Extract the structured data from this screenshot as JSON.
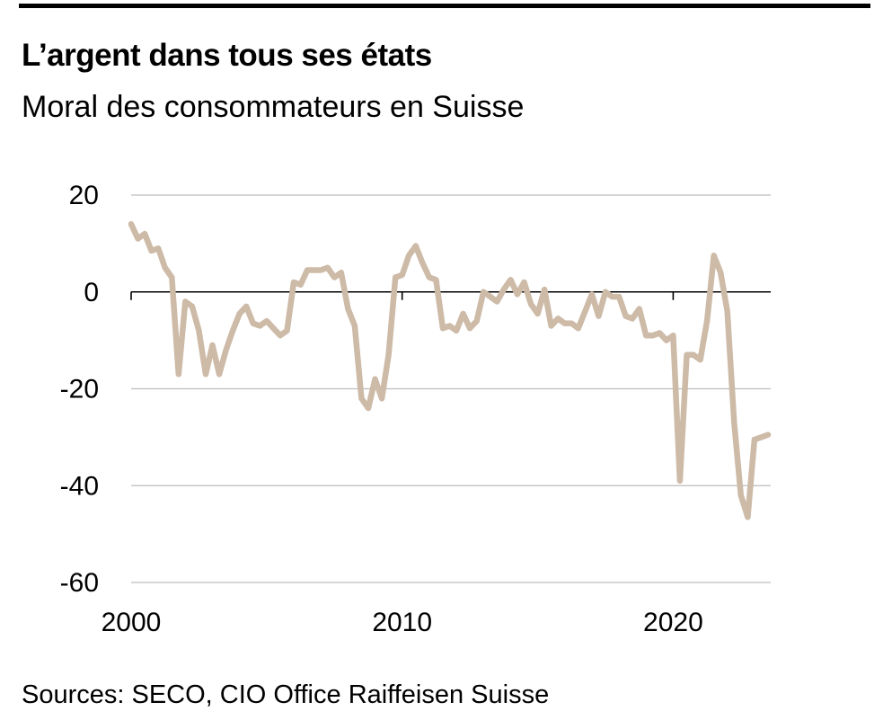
{
  "header": {
    "title": "L’argent dans tous ses états",
    "subtitle": "Moral des consommateurs en Suisse"
  },
  "footer": {
    "source": "Sources: SECO, CIO Office Raiffeisen Suisse"
  },
  "colors": {
    "line": "#cdbaa7",
    "grid": "#bdbdbd",
    "zero_line": "#000000",
    "top_rule": "#000000"
  },
  "chart_data": {
    "type": "line",
    "title": "L’argent dans tous ses états",
    "subtitle": "Moral des consommateurs en Suisse",
    "xlabel": "",
    "ylabel": "",
    "xlim": [
      2000,
      2023.5
    ],
    "ylim": [
      -60,
      20
    ],
    "x_ticks": [
      2000,
      2010,
      2020
    ],
    "y_ticks": [
      20,
      0,
      -20,
      -40,
      -60
    ],
    "grid": "horizontal",
    "series": [
      {
        "points": [
          [
            2000.0,
            14
          ],
          [
            2000.25,
            11
          ],
          [
            2000.5,
            12
          ],
          [
            2000.75,
            8.5
          ],
          [
            2001.0,
            9
          ],
          [
            2001.25,
            5
          ],
          [
            2001.5,
            3
          ],
          [
            2001.75,
            -17
          ],
          [
            2002.0,
            -2
          ],
          [
            2002.25,
            -3
          ],
          [
            2002.5,
            -8
          ],
          [
            2002.75,
            -17
          ],
          [
            2003.0,
            -11
          ],
          [
            2003.25,
            -17
          ],
          [
            2003.5,
            -12
          ],
          [
            2003.75,
            -8
          ],
          [
            2004.0,
            -4.5
          ],
          [
            2004.25,
            -3
          ],
          [
            2004.5,
            -6.5
          ],
          [
            2004.75,
            -7
          ],
          [
            2005.0,
            -6
          ],
          [
            2005.25,
            -7.5
          ],
          [
            2005.5,
            -9
          ],
          [
            2005.75,
            -8
          ],
          [
            2006.0,
            2
          ],
          [
            2006.25,
            1.5
          ],
          [
            2006.5,
            4.5
          ],
          [
            2006.75,
            4.5
          ],
          [
            2007.0,
            4.5
          ],
          [
            2007.25,
            5
          ],
          [
            2007.5,
            3
          ],
          [
            2007.75,
            4
          ],
          [
            2008.0,
            -3.5
          ],
          [
            2008.25,
            -7
          ],
          [
            2008.5,
            -22
          ],
          [
            2008.75,
            -24
          ],
          [
            2009.0,
            -18
          ],
          [
            2009.25,
            -22
          ],
          [
            2009.5,
            -13
          ],
          [
            2009.75,
            3
          ],
          [
            2010.0,
            3.5
          ],
          [
            2010.25,
            7.5
          ],
          [
            2010.5,
            9.5
          ],
          [
            2010.75,
            6
          ],
          [
            2011.0,
            3
          ],
          [
            2011.25,
            2.5
          ],
          [
            2011.5,
            -7.5
          ],
          [
            2011.75,
            -7
          ],
          [
            2012.0,
            -8
          ],
          [
            2012.25,
            -4.5
          ],
          [
            2012.5,
            -7.5
          ],
          [
            2012.75,
            -6
          ],
          [
            2013.0,
            0
          ],
          [
            2013.25,
            -1
          ],
          [
            2013.5,
            -2
          ],
          [
            2013.75,
            0.5
          ],
          [
            2014.0,
            2.5
          ],
          [
            2014.25,
            -0.5
          ],
          [
            2014.5,
            2
          ],
          [
            2014.75,
            -2.5
          ],
          [
            2015.0,
            -4.5
          ],
          [
            2015.25,
            0.5
          ],
          [
            2015.5,
            -7
          ],
          [
            2015.75,
            -5.5
          ],
          [
            2016.0,
            -6.5
          ],
          [
            2016.25,
            -6.5
          ],
          [
            2016.5,
            -7.5
          ],
          [
            2016.75,
            -4
          ],
          [
            2017.0,
            -0.5
          ],
          [
            2017.25,
            -5
          ],
          [
            2017.5,
            0
          ],
          [
            2017.75,
            -1
          ],
          [
            2018.0,
            -1
          ],
          [
            2018.25,
            -5
          ],
          [
            2018.5,
            -5.5
          ],
          [
            2018.75,
            -3.5
          ],
          [
            2019.0,
            -9
          ],
          [
            2019.25,
            -9
          ],
          [
            2019.5,
            -8.5
          ],
          [
            2019.75,
            -10
          ],
          [
            2020.0,
            -9
          ],
          [
            2020.25,
            -39
          ],
          [
            2020.5,
            -13
          ],
          [
            2020.75,
            -13
          ],
          [
            2021.0,
            -14
          ],
          [
            2021.25,
            -6
          ],
          [
            2021.5,
            7.5
          ],
          [
            2021.75,
            4
          ],
          [
            2022.0,
            -4
          ],
          [
            2022.25,
            -27
          ],
          [
            2022.5,
            -42
          ],
          [
            2022.75,
            -46.5
          ],
          [
            2023.0,
            -30.5
          ],
          [
            2023.25,
            -30
          ],
          [
            2023.5,
            -29.5
          ]
        ]
      }
    ]
  }
}
